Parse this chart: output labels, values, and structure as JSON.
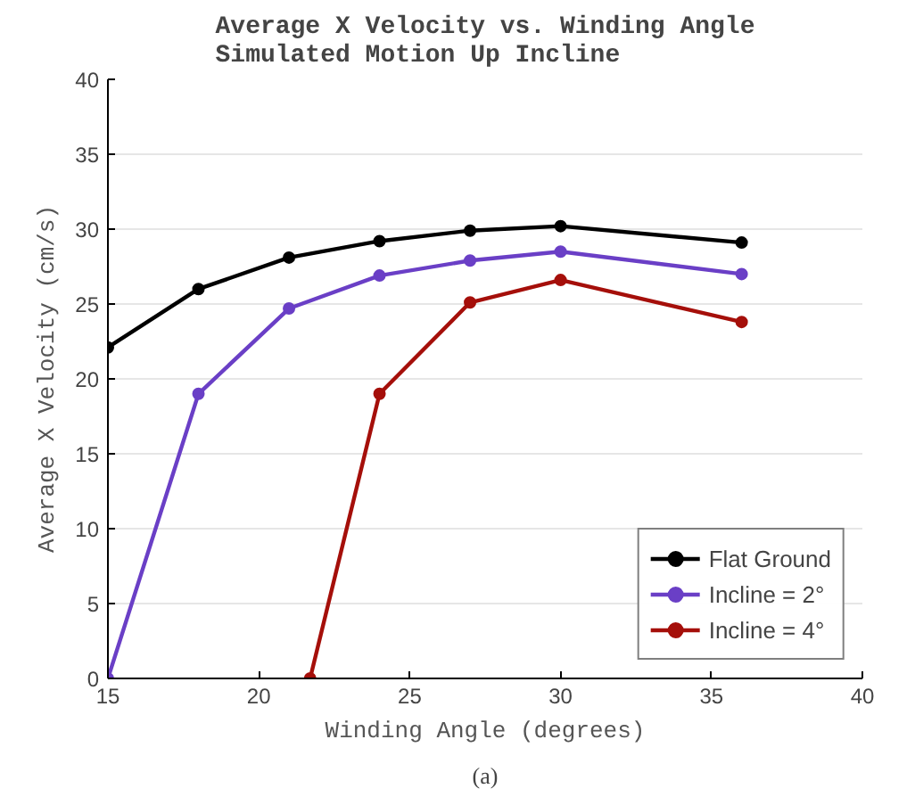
{
  "chart_data": {
    "type": "line",
    "title": "Average X Velocity vs. Winding Angle\nSimulated Motion Up Incline",
    "xlabel": "Winding Angle (degrees)",
    "ylabel": "Average X Velocity (cm/s)",
    "annotations": [
      "(a)"
    ],
    "x": [
      15,
      18,
      21,
      24,
      27,
      30,
      36
    ],
    "series": [
      {
        "name": "Flat Ground",
        "color": "#000000",
        "values": [
          22.1,
          26.0,
          28.1,
          29.2,
          29.9,
          30.2,
          29.1
        ]
      },
      {
        "name": "Incline = 2°",
        "color": "#6a3fc6",
        "values": [
          0,
          19.0,
          24.7,
          26.9,
          27.9,
          28.5,
          27.0
        ]
      },
      {
        "name": "Incline = 4°",
        "color": "#a50f0a",
        "x": [
          21.7,
          24,
          27,
          30,
          36
        ],
        "values": [
          0,
          19.0,
          25.1,
          26.6,
          23.8
        ]
      }
    ],
    "xlim": [
      15,
      40
    ],
    "ylim": [
      0,
      40
    ],
    "xticks": [
      15,
      20,
      25,
      30,
      35,
      40
    ],
    "yticks": [
      0,
      5,
      10,
      15,
      20,
      25,
      30,
      35,
      40
    ],
    "grid": "y",
    "legend": "bottom right",
    "marker": "circle",
    "line_style": "solid"
  }
}
